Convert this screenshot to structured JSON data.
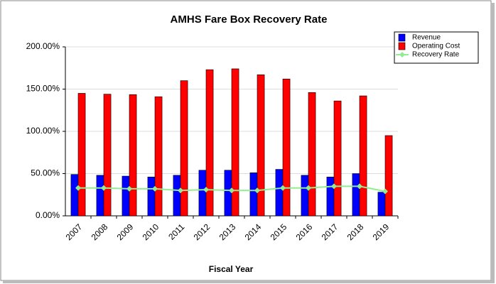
{
  "chart_data": {
    "type": "bar_line",
    "title": "AMHS Fare Box Recovery Rate",
    "x_label": "Fiscal Year",
    "categories": [
      "2007",
      "2008",
      "2009",
      "2010",
      "2011",
      "2012",
      "2013",
      "2014",
      "2015",
      "2016",
      "2017",
      "2018",
      "2019"
    ],
    "series": [
      {
        "name": "Revenue",
        "type": "bar",
        "color": "#0000ff",
        "values": [
          49,
          48,
          47,
          46,
          48,
          54,
          54,
          51,
          55,
          48,
          46,
          50,
          28
        ]
      },
      {
        "name": "Operating Cost",
        "type": "bar",
        "color": "#ff0000",
        "values": [
          145,
          144,
          143.5,
          141,
          160,
          173,
          174,
          167,
          162,
          146,
          136,
          142,
          95
        ]
      },
      {
        "name": "Recovery Rate",
        "type": "line",
        "color": "#90ee90",
        "values": [
          33,
          33,
          32,
          32,
          30,
          31,
          30,
          30,
          33,
          33,
          35,
          35,
          29
        ]
      }
    ],
    "ylim": [
      0,
      200
    ],
    "yticks": [
      {
        "value": 0,
        "label": "0.00%"
      },
      {
        "value": 50,
        "label": "50.00%"
      },
      {
        "value": 100,
        "label": "100.00%"
      },
      {
        "value": 150,
        "label": "150.00%"
      },
      {
        "value": 200,
        "label": "200.00%"
      }
    ],
    "grid": true,
    "legend": "top-right"
  }
}
